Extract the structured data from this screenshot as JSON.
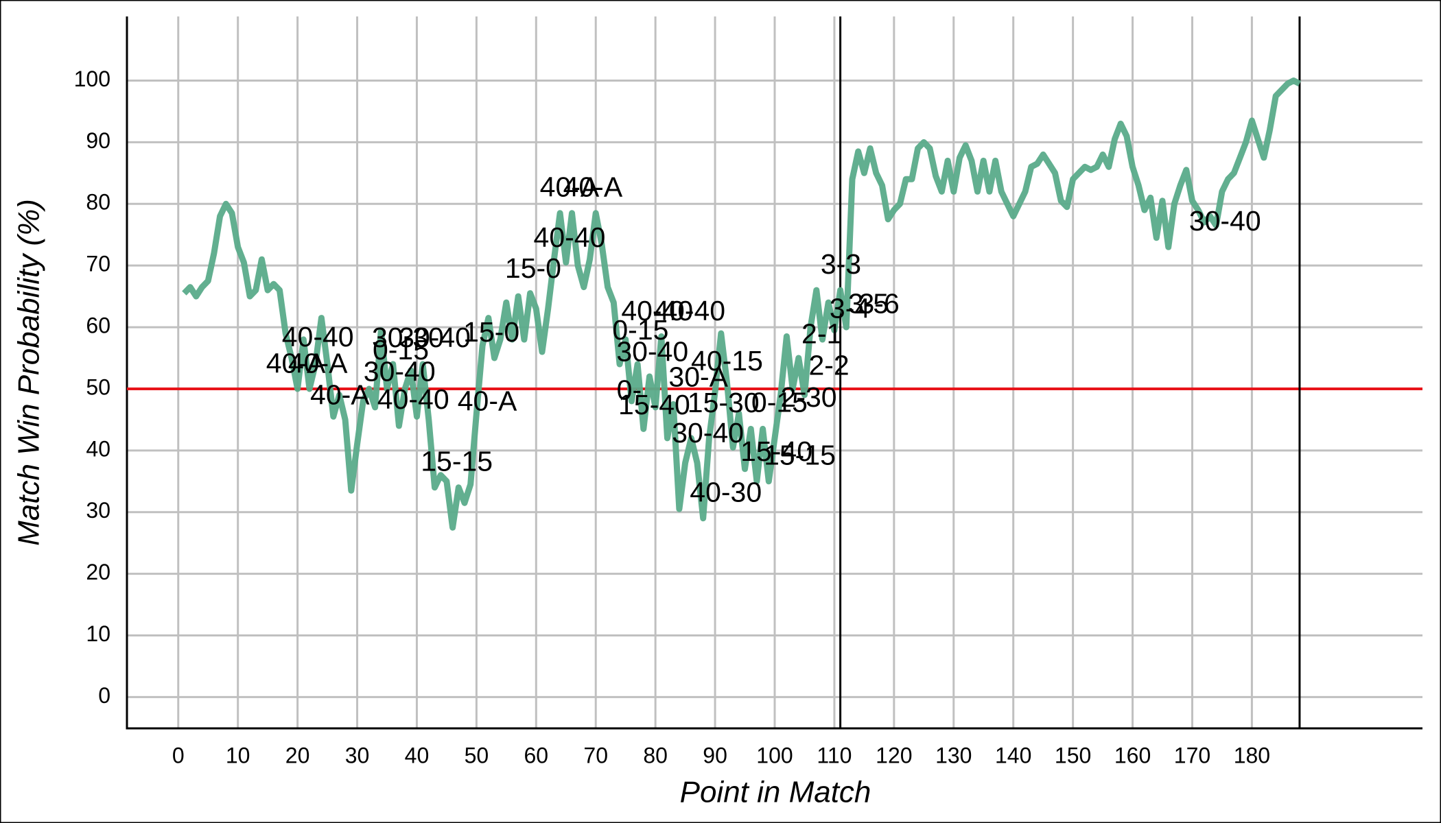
{
  "chart_data": {
    "type": "line",
    "xlabel": "Point in Match",
    "ylabel": "Match Win Probability (%)",
    "x": [
      1,
      2,
      3,
      4,
      5,
      6,
      7,
      8,
      9,
      10,
      11,
      12,
      13,
      14,
      15,
      16,
      17,
      18,
      19,
      20,
      21,
      22,
      23,
      24,
      25,
      26,
      27,
      28,
      29,
      30,
      31,
      32,
      33,
      34,
      35,
      36,
      37,
      38,
      39,
      40,
      41,
      42,
      43,
      44,
      45,
      46,
      47,
      48,
      49,
      50,
      51,
      52,
      53,
      54,
      55,
      56,
      57,
      58,
      59,
      60,
      61,
      62,
      63,
      64,
      65,
      66,
      67,
      68,
      69,
      70,
      71,
      72,
      73,
      74,
      75,
      76,
      77,
      78,
      79,
      80,
      81,
      82,
      83,
      84,
      85,
      86,
      87,
      88,
      89,
      90,
      91,
      92,
      93,
      94,
      95,
      96,
      97,
      98,
      99,
      100,
      101,
      102,
      103,
      104,
      105,
      106,
      107,
      108,
      109,
      110,
      111,
      112,
      113,
      114,
      115,
      116,
      117,
      118,
      119,
      120,
      121,
      122,
      123,
      124,
      125,
      126,
      127,
      128,
      129,
      130,
      131,
      132,
      133,
      134,
      135,
      136,
      137,
      138,
      139,
      140,
      141,
      142,
      143,
      144,
      145,
      146,
      147,
      148,
      149,
      150,
      151,
      152,
      153,
      154,
      155,
      156,
      157,
      158,
      159,
      160,
      161,
      162,
      163,
      164,
      165,
      166,
      167,
      168,
      169,
      170,
      171,
      172,
      173,
      174,
      175,
      176,
      177,
      178,
      179,
      180,
      181,
      182,
      183,
      184,
      185,
      186,
      187,
      188
    ],
    "series": [
      {
        "color": "#5aab8a",
        "values": [
          65.5,
          66.5,
          65,
          66.5,
          67.5,
          72,
          78,
          80,
          78.5,
          73,
          70.5,
          65,
          66,
          71,
          66,
          67,
          66,
          59,
          55,
          50,
          58,
          50,
          54,
          61.5,
          54,
          45.5,
          49,
          45,
          33.5,
          41,
          48,
          50,
          47,
          59.5,
          50,
          54,
          44,
          50,
          53,
          45.5,
          54,
          45,
          34,
          36,
          35,
          27.5,
          34,
          31.5,
          34.5,
          46,
          57,
          61.5,
          55,
          58,
          64,
          58,
          65,
          58,
          65.5,
          63,
          56,
          63,
          71,
          78.5,
          70.5,
          78.5,
          70,
          66.5,
          71,
          78.5,
          73.5,
          66.5,
          64,
          54,
          58,
          48,
          54,
          43.5,
          52,
          47,
          58.5,
          42,
          47.5,
          30.5,
          38,
          42,
          38,
          29,
          42,
          49.5,
          59,
          51,
          40.5,
          46,
          37,
          43.5,
          35,
          43.5,
          35,
          42,
          49,
          58.5,
          50,
          55,
          49,
          60,
          66,
          58,
          64,
          59.5,
          66,
          60,
          84,
          88.5,
          85,
          89,
          85,
          83,
          77.5,
          79,
          80,
          84,
          84,
          89,
          90,
          89,
          84.5,
          82,
          87,
          82,
          87.5,
          89.5,
          87,
          82,
          87,
          82,
          87,
          82,
          80,
          78,
          80,
          82,
          86,
          86.5,
          88,
          86.5,
          85,
          80.5,
          79.5,
          84,
          85,
          86,
          85.5,
          86,
          88,
          86,
          90.5,
          93,
          91,
          86,
          83,
          79,
          81,
          74.5,
          80.5,
          73,
          80,
          83,
          85.5,
          80.5,
          79,
          77,
          78,
          76.5,
          82,
          84,
          85,
          87.5,
          90,
          93.5,
          90.5,
          87.5,
          92,
          97.5,
          98.5,
          99.5,
          100,
          99.5
        ]
      }
    ],
    "annotations": [
      {
        "text": "40-40",
        "x": 23.4,
        "y": 58.1
      },
      {
        "text": "40-A",
        "x": 19.7,
        "y": 53.8
      },
      {
        "text": "40-A",
        "x": 23.4,
        "y": 53.8
      },
      {
        "text": "40-A",
        "x": 27.1,
        "y": 48.7
      },
      {
        "text": "0-15",
        "x": 37.3,
        "y": 56
      },
      {
        "text": "30-40",
        "x": 37.1,
        "y": 52.5
      },
      {
        "text": "30-30",
        "x": 38.5,
        "y": 58
      },
      {
        "text": "30-40",
        "x": 43,
        "y": 58
      },
      {
        "text": "40-40",
        "x": 39.4,
        "y": 48
      },
      {
        "text": "15-0",
        "x": 52.5,
        "y": 58.9
      },
      {
        "text": "40-A",
        "x": 51.8,
        "y": 47.7
      },
      {
        "text": "15-15",
        "x": 46.7,
        "y": 37.9
      },
      {
        "text": "15-0",
        "x": 59.5,
        "y": 69.2
      },
      {
        "text": "40-40",
        "x": 65.6,
        "y": 74.2
      },
      {
        "text": "40-A",
        "x": 65.6,
        "y": 82.4
      },
      {
        "text": "40-A",
        "x": 69.5,
        "y": 82.4
      },
      {
        "text": "40-40",
        "x": 80.3,
        "y": 62.3
      },
      {
        "text": "40-40",
        "x": 85.7,
        "y": 62.3
      },
      {
        "text": "0-15",
        "x": 77.5,
        "y": 59.2
      },
      {
        "text": "30-40",
        "x": 79.5,
        "y": 55.7
      },
      {
        "text": "0-",
        "x": 75.6,
        "y": 49.5
      },
      {
        "text": "15-40",
        "x": 79.8,
        "y": 47.1
      },
      {
        "text": "30-A",
        "x": 87.2,
        "y": 51.6
      },
      {
        "text": "40-15",
        "x": 92,
        "y": 54.2
      },
      {
        "text": "15-30",
        "x": 91.4,
        "y": 47.4
      },
      {
        "text": "0-15",
        "x": 100.8,
        "y": 47.5
      },
      {
        "text": "30-40",
        "x": 88.8,
        "y": 42.5
      },
      {
        "text": "15-40",
        "x": 100.3,
        "y": 39.5
      },
      {
        "text": "15-15",
        "x": 104.2,
        "y": 38.9
      },
      {
        "text": "40-30",
        "x": 91.8,
        "y": 32.9
      },
      {
        "text": "3-3",
        "x": 111.1,
        "y": 69.9
      },
      {
        "text": "2-1",
        "x": 107.9,
        "y": 58.6
      },
      {
        "text": "3-4",
        "x": 112.6,
        "y": 62.7
      },
      {
        "text": "3-5",
        "x": 115.7,
        "y": 63.5
      },
      {
        "text": "3-6",
        "x": 117.5,
        "y": 63.5
      },
      {
        "text": "2-2",
        "x": 109.1,
        "y": 53.5
      },
      {
        "text": "2-30",
        "x": 105.7,
        "y": 48.3
      },
      {
        "text": "30-40",
        "x": 175.5,
        "y": 76.9
      }
    ],
    "hline": {
      "value": 50,
      "color": "#e8141a"
    },
    "vlines": [
      111,
      188
    ],
    "xlim": [
      -8.6,
      208.6
    ],
    "ylim": [
      -5.07,
      110.4
    ],
    "xticks": [
      0,
      10,
      20,
      30,
      40,
      50,
      60,
      70,
      80,
      90,
      100,
      110,
      120,
      130,
      140,
      150,
      160,
      170,
      180
    ],
    "yticks": [
      0,
      10,
      20,
      30,
      40,
      50,
      60,
      70,
      80,
      90,
      100
    ],
    "grid": true
  }
}
